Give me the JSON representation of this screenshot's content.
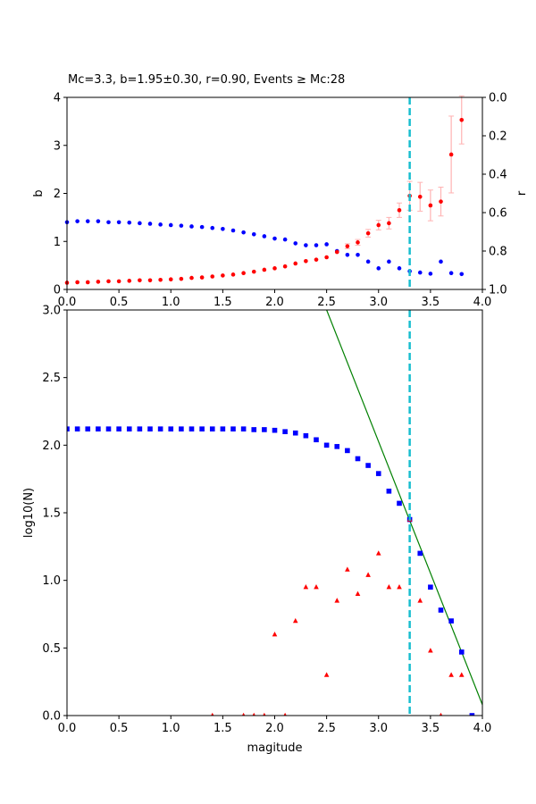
{
  "chart_data": [
    {
      "type": "scatter",
      "title": "Mc=3.3, b=1.95±0.30, r=0.90, Events ≥ Mc:28",
      "xlabel": "",
      "ylabel": "b",
      "ylabel_right": "r",
      "xlim": [
        0,
        4
      ],
      "ylim": [
        0,
        4
      ],
      "ylim_right": [
        1.0,
        0.0
      ],
      "x_ticks": [
        "0.0",
        "0.5",
        "1.0",
        "1.5",
        "2.0",
        "2.5",
        "3.0",
        "3.5",
        "4.0"
      ],
      "y_ticks": [
        "0",
        "1",
        "2",
        "3",
        "4"
      ],
      "y_right_ticks": [
        "0.0",
        "0.2",
        "0.4",
        "0.6",
        "0.8",
        "1.0"
      ],
      "vline_mc": 3.3,
      "colors": {
        "b": "#ff0000",
        "r": "#0000ff",
        "mc": "#17becf",
        "errorbar": "#ffb3b3"
      },
      "series": [
        {
          "axis": "left",
          "x": [
            0.0,
            0.1,
            0.2,
            0.3,
            0.4,
            0.5,
            0.6,
            0.7,
            0.8,
            0.9,
            1.0,
            1.1,
            1.2,
            1.3,
            1.4,
            1.5,
            1.6,
            1.7,
            1.8,
            1.9,
            2.0,
            2.1,
            2.2,
            2.3,
            2.4,
            2.5,
            2.6,
            2.7,
            2.8,
            2.9,
            3.0,
            3.1,
            3.2,
            3.3,
            3.4,
            3.5,
            3.6,
            3.7,
            3.8
          ],
          "y": [
            0.14,
            0.15,
            0.15,
            0.16,
            0.17,
            0.17,
            0.18,
            0.19,
            0.19,
            0.2,
            0.21,
            0.22,
            0.24,
            0.25,
            0.27,
            0.29,
            0.31,
            0.34,
            0.37,
            0.41,
            0.44,
            0.48,
            0.54,
            0.59,
            0.62,
            0.67,
            0.78,
            0.9,
            0.98,
            1.17,
            1.34,
            1.38,
            1.65,
            1.95,
            1.93,
            1.75,
            1.83,
            2.81,
            3.53
          ],
          "err": [
            0.01,
            0.01,
            0.01,
            0.01,
            0.01,
            0.01,
            0.01,
            0.01,
            0.01,
            0.01,
            0.01,
            0.01,
            0.01,
            0.01,
            0.01,
            0.01,
            0.01,
            0.01,
            0.01,
            0.02,
            0.02,
            0.02,
            0.02,
            0.03,
            0.03,
            0.03,
            0.04,
            0.05,
            0.06,
            0.08,
            0.1,
            0.12,
            0.15,
            0.3,
            0.3,
            0.32,
            0.3,
            0.8,
            0.5
          ]
        },
        {
          "axis": "right",
          "x": [
            0.0,
            0.1,
            0.2,
            0.3,
            0.4,
            0.5,
            0.6,
            0.7,
            0.8,
            0.9,
            1.0,
            1.1,
            1.2,
            1.3,
            1.4,
            1.5,
            1.6,
            1.7,
            1.8,
            1.9,
            2.0,
            2.1,
            2.2,
            2.3,
            2.4,
            2.5,
            2.6,
            2.7,
            2.8,
            2.9,
            3.0,
            3.1,
            3.2,
            3.3,
            3.4,
            3.5,
            3.6,
            3.7,
            3.8
          ],
          "y": [
            0.65,
            0.645,
            0.645,
            0.645,
            0.65,
            0.65,
            0.652,
            0.655,
            0.658,
            0.662,
            0.665,
            0.668,
            0.672,
            0.675,
            0.68,
            0.685,
            0.693,
            0.703,
            0.713,
            0.723,
            0.735,
            0.74,
            0.76,
            0.77,
            0.77,
            0.765,
            0.8,
            0.82,
            0.82,
            0.855,
            0.89,
            0.855,
            0.89,
            0.905,
            0.912,
            0.918,
            0.855,
            0.915,
            0.92
          ]
        }
      ]
    },
    {
      "type": "scatter",
      "title": "",
      "xlabel": "magitude",
      "ylabel": "log10(N)",
      "xlim": [
        0,
        4
      ],
      "ylim": [
        0,
        3
      ],
      "x_ticks": [
        "0.0",
        "0.5",
        "1.0",
        "1.5",
        "2.0",
        "2.5",
        "3.0",
        "3.5",
        "4.0"
      ],
      "y_ticks": [
        "0.0",
        "0.5",
        "1.0",
        "1.5",
        "2.0",
        "2.5",
        "3.0"
      ],
      "vline_mc": 3.3,
      "fit_line": {
        "x": [
          2.5,
          4.0
        ],
        "y": [
          3.0,
          0.08
        ],
        "color": "#008000"
      },
      "colors": {
        "cumulative": "#0000ff",
        "noncumulative": "#ff0000",
        "mc": "#17becf"
      },
      "series": [
        {
          "marker": "square",
          "x": [
            0.0,
            0.1,
            0.2,
            0.3,
            0.4,
            0.5,
            0.6,
            0.7,
            0.8,
            0.9,
            1.0,
            1.1,
            1.2,
            1.3,
            1.4,
            1.5,
            1.6,
            1.7,
            1.8,
            1.9,
            2.0,
            2.1,
            2.2,
            2.3,
            2.4,
            2.5,
            2.6,
            2.7,
            2.8,
            2.9,
            3.0,
            3.1,
            3.2,
            3.3,
            3.4,
            3.5,
            3.6,
            3.7,
            3.8,
            3.9
          ],
          "y": [
            2.12,
            2.12,
            2.12,
            2.12,
            2.12,
            2.12,
            2.12,
            2.12,
            2.12,
            2.12,
            2.12,
            2.12,
            2.12,
            2.12,
            2.12,
            2.12,
            2.12,
            2.12,
            2.115,
            2.115,
            2.11,
            2.1,
            2.09,
            2.07,
            2.04,
            2.0,
            1.99,
            1.96,
            1.9,
            1.85,
            1.79,
            1.66,
            1.57,
            1.45,
            1.2,
            0.95,
            0.78,
            0.7,
            0.47,
            0.0
          ]
        },
        {
          "marker": "triangle",
          "x": [
            1.4,
            1.7,
            1.8,
            1.9,
            2.0,
            2.1,
            2.2,
            2.3,
            2.4,
            2.5,
            2.6,
            2.7,
            2.8,
            2.9,
            3.0,
            3.1,
            3.2,
            3.3,
            3.4,
            3.5,
            3.6,
            3.7,
            3.8
          ],
          "y": [
            0.0,
            0.0,
            0.0,
            0.0,
            0.6,
            0.0,
            0.7,
            0.95,
            0.95,
            0.3,
            0.85,
            1.08,
            0.9,
            1.04,
            1.2,
            0.95,
            0.95,
            1.45,
            0.85,
            0.48,
            0.0,
            0.3,
            0.3
          ]
        }
      ]
    }
  ]
}
